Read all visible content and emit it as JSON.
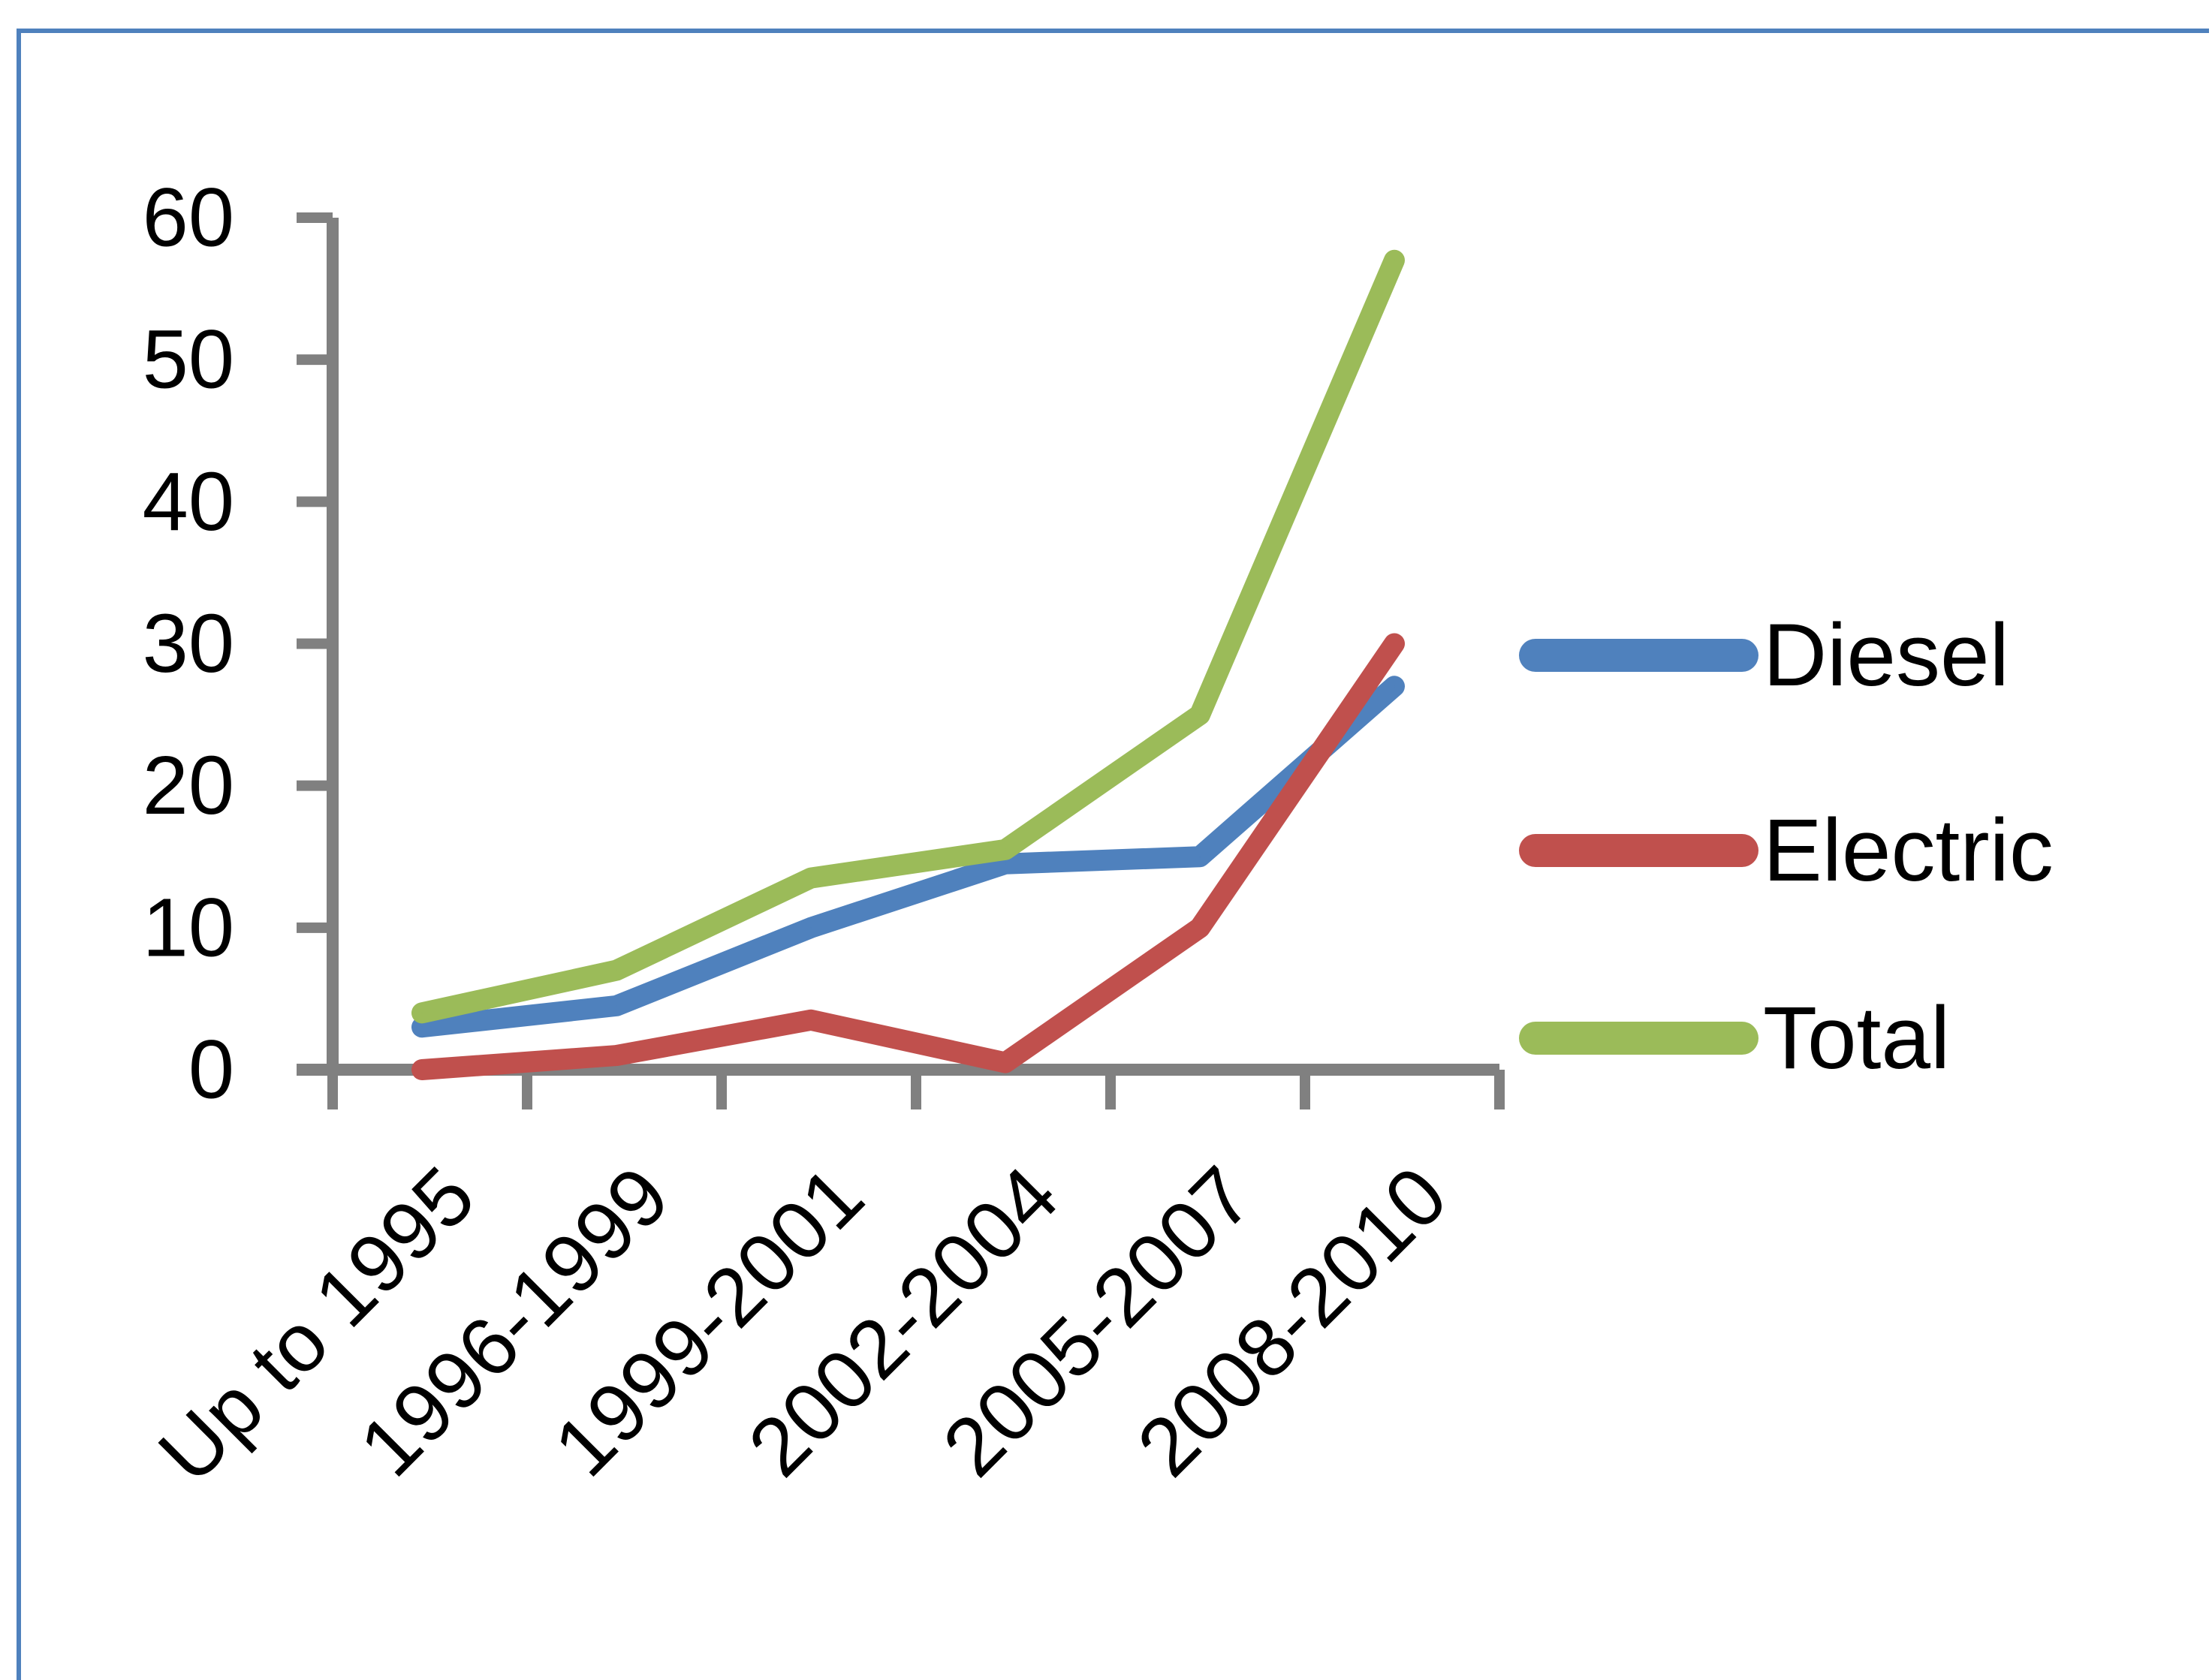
{
  "chart_data": {
    "type": "line",
    "title": "",
    "xlabel": "",
    "ylabel": "",
    "categories": [
      "Up to 1995",
      "1996-1999",
      "1999-2001",
      "2002-2004",
      "2005-2007",
      "2008-2010"
    ],
    "series": [
      {
        "name": "Diesel",
        "values": [
          3,
          4.5,
          10,
          14.5,
          15,
          27
        ]
      },
      {
        "name": "Electric",
        "values": [
          0,
          1,
          3.5,
          0.5,
          10,
          30
        ]
      },
      {
        "name": "Total",
        "values": [
          4,
          7,
          13.5,
          15.5,
          25,
          57
        ]
      }
    ],
    "ylim": [
      0,
      60
    ],
    "yticks": [
      "0",
      "10",
      "20",
      "30",
      "40",
      "50",
      "60"
    ],
    "grid": false,
    "legend_position": "right"
  },
  "colors": {
    "Diesel": "#4F81BD",
    "Electric": "#C0504D",
    "Total": "#9BBB59",
    "axis": "#808080",
    "frame": "#4F81BD"
  }
}
